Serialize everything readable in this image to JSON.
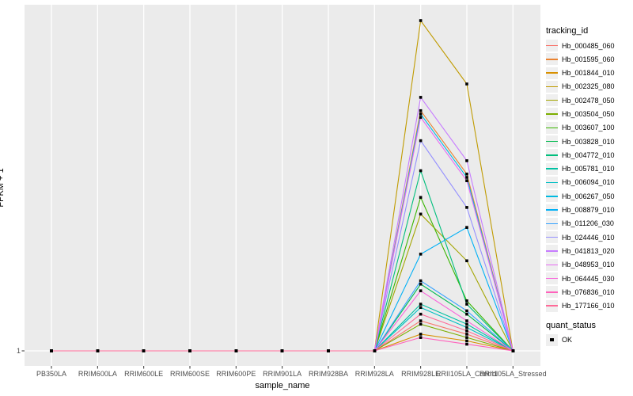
{
  "figure": {
    "background": "#ffffff",
    "panel_background": "#ebebeb",
    "gridline_color": "#ffffff",
    "tick_mark_color": "#333333",
    "tick_label_color": "#4d4d4d",
    "axis_title_color": "#000000"
  },
  "chart_data": {
    "type": "line",
    "title": "",
    "xlabel": "sample_name",
    "ylabel": "FPKM + 1",
    "y_tick_labels": [
      "1"
    ],
    "y_baseline_value": 1,
    "ylim": [
      1,
      104
    ],
    "grid": "on",
    "legend_position": "right",
    "point_shape": "square",
    "point_color": "#000000",
    "categories": [
      "PB350LA",
      "RRIM600LA",
      "RRIM600LE",
      "RRIM600SE",
      "RRIM600PE",
      "RRIM901LA",
      "RRIM928BA",
      "RRIM928LA",
      "RRIM928LE",
      "RRII105LA_Control",
      "RRII105LA_Stressed"
    ],
    "series": [
      {
        "name": "Hb_000485_060",
        "color": "#F8766D",
        "values": [
          1,
          1,
          1,
          1,
          1,
          1,
          1,
          1,
          10,
          6,
          1
        ]
      },
      {
        "name": "Hb_001595_060",
        "color": "#EA8331",
        "values": [
          1,
          1,
          1,
          1,
          1,
          1,
          1,
          1,
          73,
          54,
          1
        ]
      },
      {
        "name": "Hb_001844_010",
        "color": "#D89000",
        "values": [
          1,
          1,
          1,
          1,
          1,
          1,
          1,
          1,
          6,
          4,
          1
        ]
      },
      {
        "name": "Hb_002325_080",
        "color": "#C09B00",
        "values": [
          1,
          1,
          1,
          1,
          1,
          1,
          1,
          1,
          100,
          81,
          1
        ]
      },
      {
        "name": "Hb_002478_050",
        "color": "#A3A500",
        "values": [
          1,
          1,
          1,
          1,
          1,
          1,
          1,
          1,
          42,
          28,
          1
        ]
      },
      {
        "name": "Hb_003504_050",
        "color": "#7CAE00",
        "values": [
          1,
          1,
          1,
          1,
          1,
          1,
          1,
          1,
          9,
          5,
          1
        ]
      },
      {
        "name": "Hb_003607_100",
        "color": "#39B600",
        "values": [
          1,
          1,
          1,
          1,
          1,
          1,
          1,
          1,
          47,
          16,
          1
        ]
      },
      {
        "name": "Hb_003828_010",
        "color": "#00BB4E",
        "values": [
          1,
          1,
          1,
          1,
          1,
          1,
          1,
          1,
          21,
          12,
          1
        ]
      },
      {
        "name": "Hb_004772_010",
        "color": "#00BF7D",
        "values": [
          1,
          1,
          1,
          1,
          1,
          1,
          1,
          1,
          55,
          15,
          1
        ]
      },
      {
        "name": "Hb_005781_010",
        "color": "#00C1A3",
        "values": [
          1,
          1,
          1,
          1,
          1,
          1,
          1,
          1,
          15,
          9,
          1
        ]
      },
      {
        "name": "Hb_006094_010",
        "color": "#00BFC4",
        "values": [
          1,
          1,
          1,
          1,
          1,
          1,
          1,
          1,
          14,
          8,
          1
        ]
      },
      {
        "name": "Hb_006267_050",
        "color": "#00BAE0",
        "values": [
          1,
          1,
          1,
          1,
          1,
          1,
          1,
          1,
          72,
          53,
          1
        ]
      },
      {
        "name": "Hb_008879_010",
        "color": "#00B0F6",
        "values": [
          1,
          1,
          1,
          1,
          1,
          1,
          1,
          1,
          30,
          38,
          1
        ]
      },
      {
        "name": "Hb_011206_030",
        "color": "#35A2FF",
        "values": [
          1,
          1,
          1,
          1,
          1,
          1,
          1,
          1,
          22,
          13,
          1
        ]
      },
      {
        "name": "Hb_024446_010",
        "color": "#9590FF",
        "values": [
          1,
          1,
          1,
          1,
          1,
          1,
          1,
          1,
          64,
          44,
          1
        ]
      },
      {
        "name": "Hb_041813_020",
        "color": "#C77CFF",
        "values": [
          1,
          1,
          1,
          1,
          1,
          1,
          1,
          1,
          77,
          58,
          1
        ]
      },
      {
        "name": "Hb_048953_010",
        "color": "#E76BF3",
        "values": [
          1,
          1,
          1,
          1,
          1,
          1,
          1,
          1,
          71,
          52,
          1
        ]
      },
      {
        "name": "Hb_064445_030",
        "color": "#FA62DB",
        "values": [
          1,
          1,
          1,
          1,
          1,
          1,
          1,
          1,
          19,
          10,
          1
        ]
      },
      {
        "name": "Hb_076836_010",
        "color": "#FF62BC",
        "values": [
          1,
          1,
          1,
          1,
          1,
          1,
          1,
          1,
          5,
          3,
          1
        ]
      },
      {
        "name": "Hb_177166_010",
        "color": "#FF6A98",
        "values": [
          1,
          1,
          1,
          1,
          1,
          1,
          1,
          1,
          12,
          7,
          1
        ]
      }
    ]
  },
  "legend": {
    "tracking_title": "tracking_id",
    "quant_title": "quant_status",
    "quant_items": [
      {
        "label": "OK"
      }
    ]
  }
}
